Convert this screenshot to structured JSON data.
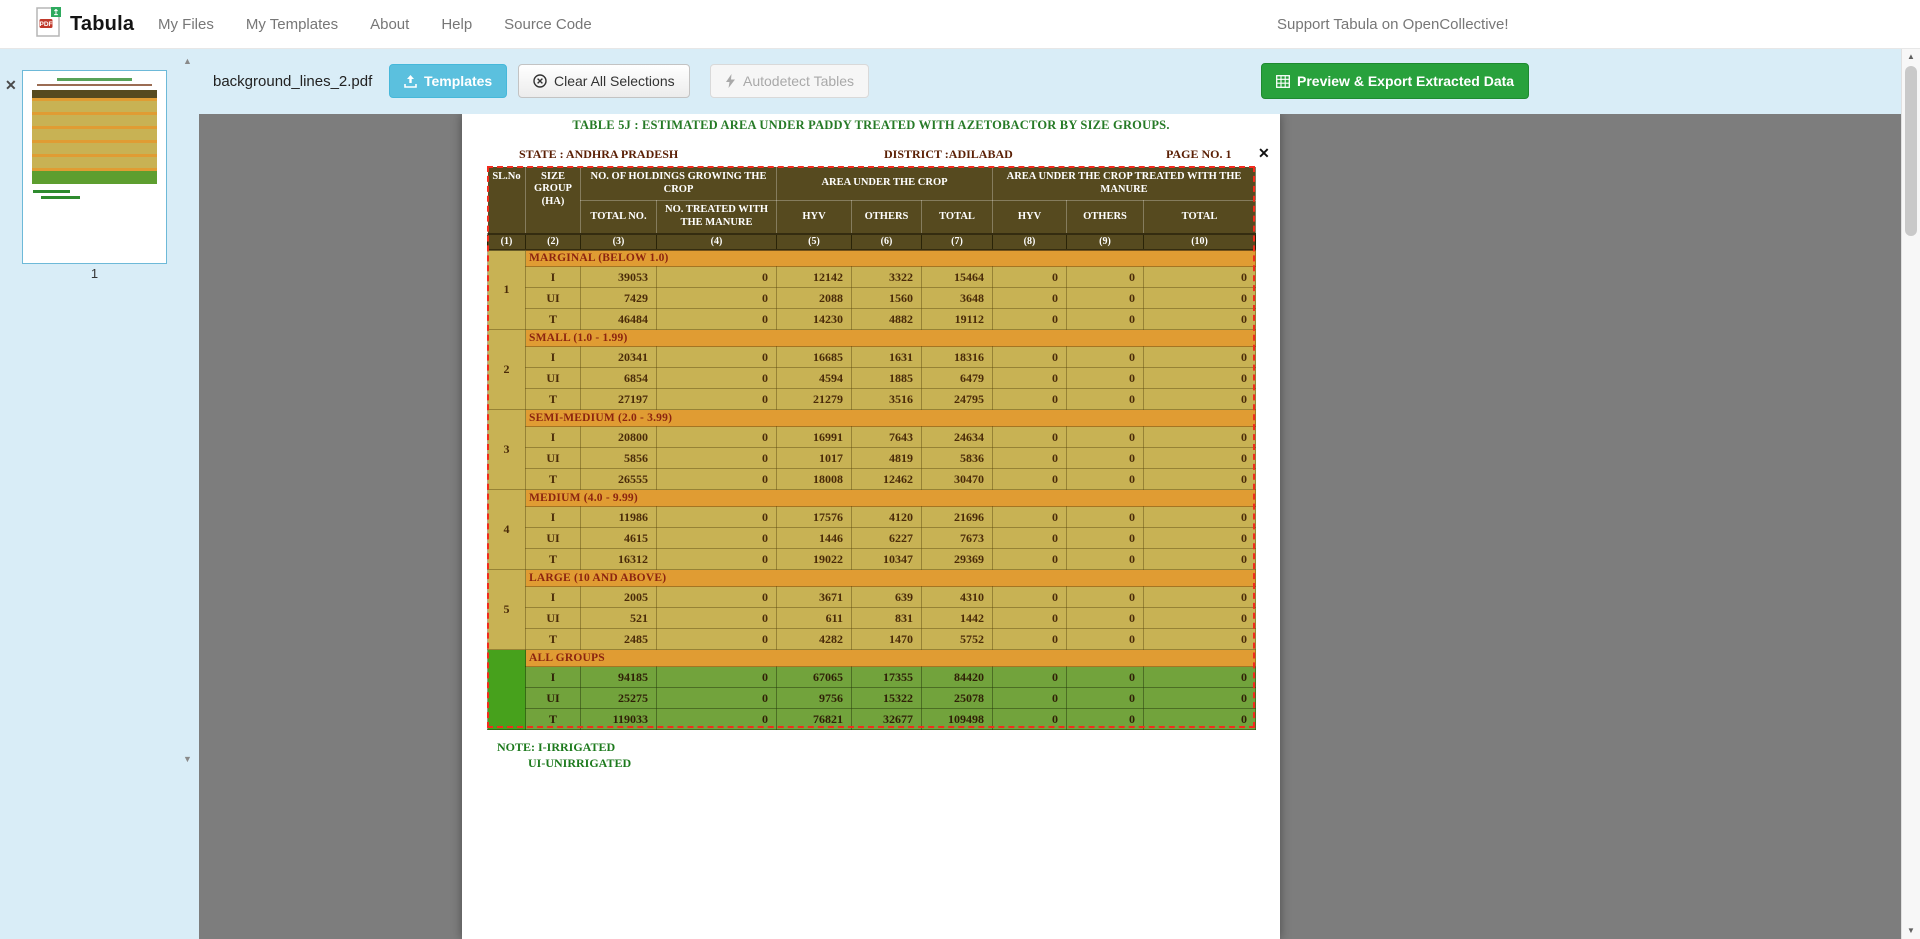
{
  "navbar": {
    "brand": "Tabula",
    "items": [
      {
        "label": "My Files"
      },
      {
        "label": "My Templates"
      },
      {
        "label": "About"
      },
      {
        "label": "Help"
      },
      {
        "label": "Source Code"
      }
    ],
    "support": "Support Tabula on OpenCollective!"
  },
  "toolbar": {
    "filename": "background_lines_2.pdf",
    "templates": "Templates",
    "clear": "Clear All Selections",
    "autodetect": "Autodetect Tables",
    "export": "Preview & Export Extracted Data"
  },
  "sidebar": {
    "page_number": "1"
  },
  "doc": {
    "title": "TABLE 5J : ESTIMATED AREA UNDER PADDY TREATED WITH AZETOBACTOR BY SIZE GROUPS.",
    "state": "STATE : ANDHRA PRADESH",
    "district": "DISTRICT :ADILABAD",
    "page_no": "PAGE NO. 1",
    "close": "✕",
    "note1": "NOTE: I-IRRIGATED",
    "note2": "UI-UNIRRIGATED"
  },
  "table": {
    "header": {
      "sl_no": "SL.No",
      "size_group": "SIZE GROUP (HA)",
      "holdings_group": "NO. OF HOLDINGS GROWING THE CROP",
      "area_group": "AREA UNDER THE CROP",
      "treated_group": "AREA UNDER THE CROP TREATED WITH THE MANURE",
      "sub": [
        "TOTAL NO.",
        "NO. TREATED WITH THE MANURE",
        "HYV",
        "OTHERS",
        "TOTAL",
        "HYV",
        "OTHERS",
        "TOTAL"
      ]
    },
    "column_numbers": [
      "(1)",
      "(2)",
      "(3)",
      "(4)",
      "(5)",
      "(6)",
      "(7)",
      "(8)",
      "(9)",
      "(10)"
    ],
    "sections": [
      {
        "sl_no": "1",
        "name": "MARGINAL (BELOW 1.0)",
        "green": false,
        "rows": [
          {
            "type": "I",
            "values": [
              39053,
              0,
              12142,
              3322,
              15464,
              0,
              0,
              0
            ]
          },
          {
            "type": "UI",
            "values": [
              7429,
              0,
              2088,
              1560,
              3648,
              0,
              0,
              0
            ]
          },
          {
            "type": "T",
            "values": [
              46484,
              0,
              14230,
              4882,
              19112,
              0,
              0,
              0
            ]
          }
        ]
      },
      {
        "sl_no": "2",
        "name": "SMALL (1.0 - 1.99)",
        "green": false,
        "rows": [
          {
            "type": "I",
            "values": [
              20341,
              0,
              16685,
              1631,
              18316,
              0,
              0,
              0
            ]
          },
          {
            "type": "UI",
            "values": [
              6854,
              0,
              4594,
              1885,
              6479,
              0,
              0,
              0
            ]
          },
          {
            "type": "T",
            "values": [
              27197,
              0,
              21279,
              3516,
              24795,
              0,
              0,
              0
            ]
          }
        ]
      },
      {
        "sl_no": "3",
        "name": "SEMI-MEDIUM (2.0 - 3.99)",
        "green": false,
        "rows": [
          {
            "type": "I",
            "values": [
              20800,
              0,
              16991,
              7643,
              24634,
              0,
              0,
              0
            ]
          },
          {
            "type": "UI",
            "values": [
              5856,
              0,
              1017,
              4819,
              5836,
              0,
              0,
              0
            ]
          },
          {
            "type": "T",
            "values": [
              26555,
              0,
              18008,
              12462,
              30470,
              0,
              0,
              0
            ]
          }
        ]
      },
      {
        "sl_no": "4",
        "name": "MEDIUM (4.0 - 9.99)",
        "green": false,
        "rows": [
          {
            "type": "I",
            "values": [
              11986,
              0,
              17576,
              4120,
              21696,
              0,
              0,
              0
            ]
          },
          {
            "type": "UI",
            "values": [
              4615,
              0,
              1446,
              6227,
              7673,
              0,
              0,
              0
            ]
          },
          {
            "type": "T",
            "values": [
              16312,
              0,
              19022,
              10347,
              29369,
              0,
              0,
              0
            ]
          }
        ]
      },
      {
        "sl_no": "5",
        "name": "LARGE (10 AND ABOVE)",
        "green": false,
        "rows": [
          {
            "type": "I",
            "values": [
              2005,
              0,
              3671,
              639,
              4310,
              0,
              0,
              0
            ]
          },
          {
            "type": "UI",
            "values": [
              521,
              0,
              611,
              831,
              1442,
              0,
              0,
              0
            ]
          },
          {
            "type": "T",
            "values": [
              2485,
              0,
              4282,
              1470,
              5752,
              0,
              0,
              0
            ]
          }
        ]
      },
      {
        "sl_no": "",
        "name": "ALL GROUPS",
        "green": true,
        "rows": [
          {
            "type": "I",
            "values": [
              94185,
              0,
              67065,
              17355,
              84420,
              0,
              0,
              0
            ]
          },
          {
            "type": "UI",
            "values": [
              25275,
              0,
              9756,
              15322,
              25078,
              0,
              0,
              0
            ]
          },
          {
            "type": "T",
            "values": [
              119033,
              0,
              76821,
              32677,
              109498,
              0,
              0,
              0
            ]
          }
        ]
      }
    ]
  }
}
